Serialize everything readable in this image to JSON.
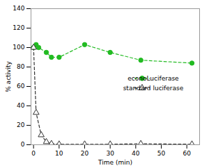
{
  "chart_data": {
    "type": "line",
    "xlabel": "Time (min)",
    "ylabel": "% activity",
    "series": [
      {
        "name": "econoLuciferase",
        "color": "#22bb22",
        "marker": "circle",
        "line_style": "dashed",
        "x": [
          0,
          1,
          2,
          5,
          7,
          10,
          20,
          30,
          42,
          62
        ],
        "values": [
          100,
          103,
          100,
          95,
          90,
          90,
          103,
          95,
          87,
          84
        ]
      },
      {
        "name": "standard luciferase",
        "color": "#333333",
        "marker": "triangle-open",
        "line_style": "dashed",
        "x": [
          0,
          1,
          3,
          5,
          7,
          10,
          20,
          30,
          42,
          62
        ],
        "values": [
          100,
          33,
          10,
          3,
          1,
          0.5,
          0.5,
          0.5,
          1,
          0.5
        ]
      }
    ],
    "xlim": [
      -1,
      65
    ],
    "ylim": [
      0,
      140
    ],
    "xticks": [
      0,
      10,
      20,
      30,
      40,
      50,
      60
    ],
    "yticks": [
      0,
      20,
      40,
      60,
      80,
      100,
      120,
      140
    ],
    "grid": false,
    "legend": "right"
  }
}
